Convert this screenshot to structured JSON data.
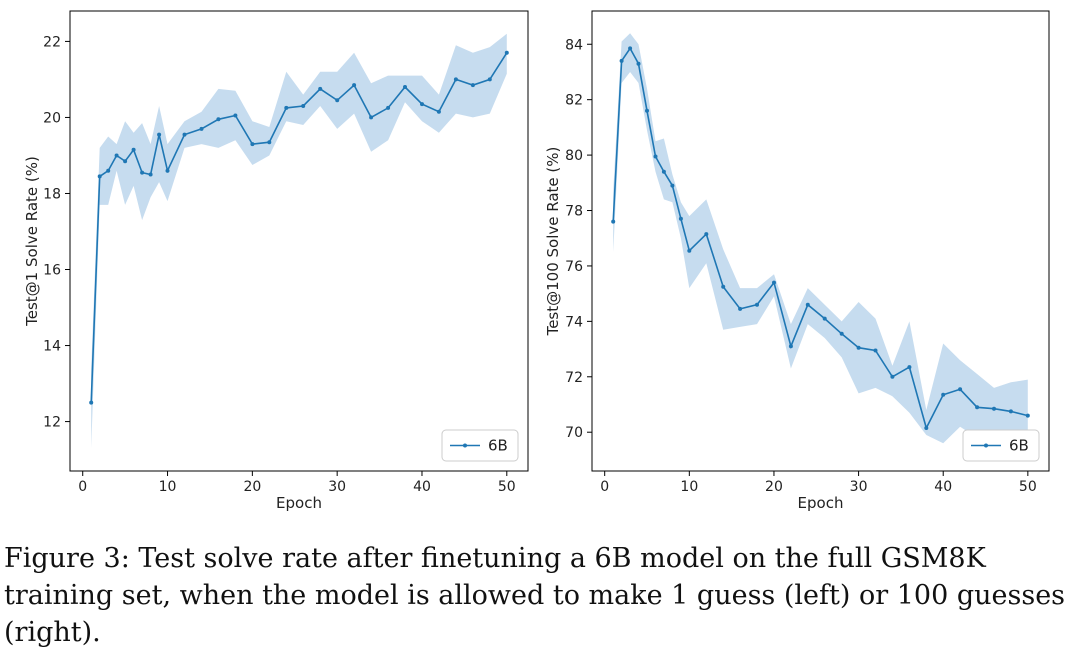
{
  "chart_data": [
    {
      "type": "line",
      "title": "",
      "xlabel": "Epoch",
      "ylabel": "Test@1 Solve Rate (%)",
      "xlim": [
        -1.5,
        52.5
      ],
      "ylim": [
        10.7,
        22.8
      ],
      "xticks": [
        0,
        10,
        20,
        30,
        40,
        50
      ],
      "yticks": [
        12,
        14,
        16,
        18,
        20,
        22
      ],
      "legend": {
        "position": "bottom-right",
        "entries": [
          "6B"
        ]
      },
      "series": [
        {
          "name": "6B",
          "color": "#1f77b4",
          "band_color": "#c6dcef",
          "x": [
            1,
            2,
            3,
            4,
            5,
            6,
            7,
            8,
            9,
            10,
            12,
            14,
            16,
            18,
            20,
            22,
            24,
            26,
            28,
            30,
            32,
            34,
            36,
            38,
            40,
            42,
            44,
            46,
            48,
            50
          ],
          "y": [
            12.5,
            18.45,
            18.6,
            19.0,
            18.85,
            19.15,
            18.55,
            18.5,
            19.55,
            18.6,
            19.55,
            19.7,
            19.95,
            20.05,
            19.3,
            19.35,
            20.25,
            20.3,
            20.75,
            20.45,
            20.85,
            20.0,
            20.25,
            20.8,
            20.35,
            20.15,
            21.0,
            20.85,
            21.0,
            21.7
          ],
          "lower": [
            11.3,
            17.7,
            17.7,
            18.6,
            17.7,
            18.2,
            17.3,
            17.9,
            18.3,
            17.8,
            19.2,
            19.3,
            19.2,
            19.4,
            18.75,
            19.0,
            19.9,
            19.8,
            20.3,
            19.7,
            20.1,
            19.1,
            19.4,
            20.4,
            19.9,
            19.6,
            20.1,
            20.0,
            20.1,
            21.15
          ],
          "upper": [
            13.4,
            19.2,
            19.5,
            19.3,
            19.9,
            19.6,
            19.85,
            19.3,
            20.3,
            19.3,
            19.9,
            20.15,
            20.75,
            20.7,
            19.9,
            19.75,
            21.2,
            20.6,
            21.2,
            21.2,
            21.7,
            20.9,
            21.1,
            21.1,
            21.1,
            20.6,
            21.9,
            21.7,
            21.85,
            22.2
          ]
        }
      ]
    },
    {
      "type": "line",
      "title": "",
      "xlabel": "Epoch",
      "ylabel": "Test@100 Solve Rate (%)",
      "xlim": [
        -1.5,
        52.5
      ],
      "ylim": [
        68.6,
        85.2
      ],
      "xticks": [
        0,
        10,
        20,
        30,
        40,
        50
      ],
      "yticks": [
        70,
        72,
        74,
        76,
        78,
        80,
        82,
        84
      ],
      "legend": {
        "position": "bottom-right",
        "entries": [
          "6B"
        ]
      },
      "series": [
        {
          "name": "6B",
          "color": "#1f77b4",
          "band_color": "#c6dcef",
          "x": [
            1,
            2,
            3,
            4,
            5,
            6,
            7,
            8,
            9,
            10,
            12,
            14,
            16,
            18,
            20,
            22,
            24,
            26,
            28,
            30,
            32,
            34,
            36,
            38,
            40,
            42,
            44,
            46,
            48,
            50
          ],
          "y": [
            77.6,
            83.4,
            83.85,
            83.3,
            81.6,
            79.95,
            79.4,
            78.9,
            77.7,
            76.55,
            77.15,
            75.25,
            74.45,
            74.6,
            75.4,
            73.1,
            74.6,
            74.1,
            73.55,
            73.05,
            72.95,
            72.0,
            72.35,
            70.15,
            71.35,
            71.55,
            70.9,
            70.85,
            70.75,
            70.6
          ],
          "lower": [
            76.5,
            82.6,
            83.0,
            82.6,
            80.9,
            79.4,
            78.4,
            78.3,
            77.0,
            75.2,
            76.1,
            73.7,
            73.8,
            73.9,
            74.9,
            72.3,
            73.9,
            73.4,
            72.7,
            71.4,
            71.6,
            71.3,
            70.7,
            69.9,
            69.6,
            70.2,
            69.8,
            69.7,
            69.6,
            69.5
          ],
          "upper": [
            78.7,
            84.1,
            84.4,
            84.0,
            82.4,
            80.5,
            80.6,
            79.3,
            78.3,
            77.8,
            78.4,
            76.6,
            75.2,
            75.2,
            75.7,
            73.9,
            75.2,
            74.6,
            74.0,
            74.7,
            74.1,
            72.4,
            74.0,
            70.8,
            73.2,
            72.6,
            72.1,
            71.6,
            71.8,
            71.9
          ]
        }
      ]
    }
  ],
  "caption": "Figure 3: Test solve rate after finetuning a 6B model on the full GSM8K training set, when the model is allowed to make 1 guess (left) or 100 guesses (right)."
}
